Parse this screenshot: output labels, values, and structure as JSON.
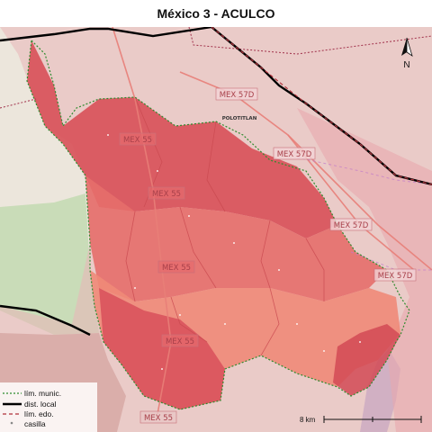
{
  "title": "México 3 - ACULCO",
  "road_labels": [
    "MEX 57D",
    "MEX 55",
    "MEX 57D",
    "MEX 55",
    "MEX 57D",
    "MEX 55",
    "MEX 57D",
    "MEX 55",
    "MEX 55"
  ],
  "town_label": "POLOTITLAN",
  "north_label": "N",
  "scale_label": "8 km",
  "legend": {
    "items": [
      {
        "label": "lím. munic."
      },
      {
        "label": "dist. local"
      },
      {
        "label": "lím. edo."
      },
      {
        "label": "casilla"
      }
    ]
  },
  "colors": {
    "municipal_limit": "#2e8b2e",
    "district_local": "#000000",
    "state_limit": "#a0304a",
    "district_fill": "#e06066",
    "water": "#b3aad0"
  }
}
